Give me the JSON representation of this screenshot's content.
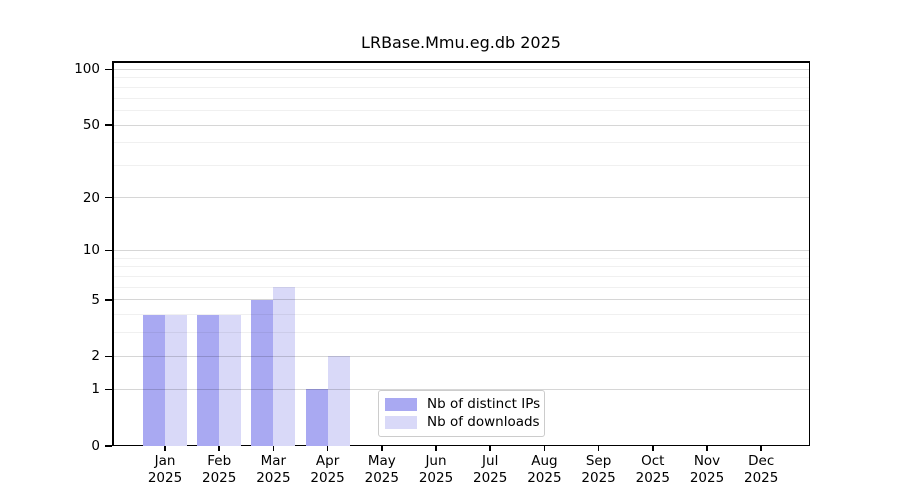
{
  "chart_data": {
    "type": "bar",
    "title": "LRBase.Mmu.eg.db 2025",
    "year": "2025",
    "months": [
      "Jan",
      "Feb",
      "Mar",
      "Apr",
      "May",
      "Jun",
      "Jul",
      "Aug",
      "Sep",
      "Oct",
      "Nov",
      "Dec"
    ],
    "categories": [
      "Jan 2025",
      "Feb 2025",
      "Mar 2025",
      "Apr 2025",
      "May 2025",
      "Jun 2025",
      "Jul 2025",
      "Aug 2025",
      "Sep 2025",
      "Oct 2025",
      "Nov 2025",
      "Dec 2025"
    ],
    "series": [
      {
        "name": "Nb of distinct IPs",
        "color": "#a9a9f2",
        "values": [
          4,
          4,
          5,
          1,
          0,
          0,
          0,
          0,
          0,
          0,
          0,
          0
        ]
      },
      {
        "name": "Nb of downloads",
        "color": "#d9d9f8",
        "values": [
          4,
          4,
          6,
          2,
          0,
          0,
          0,
          0,
          0,
          0,
          0,
          0
        ]
      }
    ],
    "xlabel": "",
    "ylabel": "",
    "y_scale": "log1p",
    "ylim": [
      0,
      111
    ],
    "y_major_ticks": [
      0,
      1,
      2,
      5,
      10,
      20,
      50,
      100
    ],
    "y_tick_labels": [
      "0",
      "1",
      "2",
      "5",
      "10",
      "20",
      "50",
      "100"
    ],
    "y_minor_gridlines": [
      3,
      4,
      6,
      7,
      8,
      9,
      30,
      40,
      60,
      70,
      80,
      90
    ],
    "grid": "on",
    "legend_position": "lower center"
  },
  "colors": {
    "background": "#ffffff",
    "axis": "#000000",
    "bar_distinct_ips": "#a9a9f2",
    "bar_downloads": "#d9d9f8",
    "grid_major": "#d6d6d6",
    "grid_minor": "#efefef",
    "legend_border": "#cccccc"
  }
}
